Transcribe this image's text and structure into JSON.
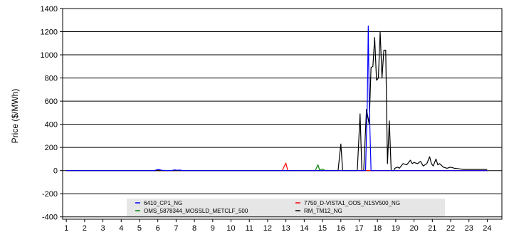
{
  "chart_data": {
    "type": "line",
    "ylabel": "Price ($/MWh)",
    "xlim": [
      0.8,
      24.8
    ],
    "ylim": [
      -420,
      1400
    ],
    "y_ticks": [
      1400,
      1200,
      1000,
      800,
      600,
      400,
      200,
      0,
      -200,
      -400
    ],
    "y_tick_labels": [
      "1400",
      "1200",
      "1000",
      "800",
      "600",
      "400",
      "200",
      "0",
      "-200",
      "-400"
    ],
    "x_ticks": [
      1,
      2,
      3,
      4,
      5,
      6,
      7,
      8,
      9,
      10,
      11,
      12,
      13,
      14,
      15,
      16,
      17,
      18,
      19,
      20,
      21,
      22,
      23,
      24
    ],
    "x_tick_labels": [
      "1",
      "2",
      "3",
      "4",
      "5",
      "6",
      "7",
      "8",
      "9",
      "10",
      "11",
      "12",
      "13",
      "14",
      "15",
      "16",
      "17",
      "18",
      "19",
      "20",
      "21",
      "22",
      "23",
      "24"
    ],
    "grid": "horizontal",
    "legend_position": "bottom-center",
    "series": [
      {
        "name": "6410_CP1_NG",
        "color": "#0000ff",
        "x": [
          1,
          5.8,
          5.9,
          6.0,
          6.1,
          6.2,
          6.6,
          6.8,
          6.9,
          7.0,
          7.1,
          7.2,
          7.3,
          7.5,
          17.35,
          17.45,
          17.5,
          17.55,
          17.65,
          24
        ],
        "y": [
          0,
          0,
          5,
          10,
          8,
          3,
          0,
          2,
          6,
          4,
          3,
          5,
          2,
          0,
          0,
          600,
          1250,
          600,
          0,
          0
        ]
      },
      {
        "name": "7750_D-VISTA1_OOS_N1SV500_NG",
        "color": "#ff0000",
        "x": [
          1,
          12.8,
          12.9,
          13.0,
          13.1,
          24
        ],
        "y": [
          0,
          0,
          35,
          65,
          0,
          0
        ]
      },
      {
        "name": "OMS_5878344_MOSSLD_METCLF_500",
        "color": "#008000",
        "x": [
          1,
          14.6,
          14.75,
          14.85,
          14.95,
          15.05,
          15.15,
          24
        ],
        "y": [
          0,
          0,
          50,
          0,
          12,
          10,
          0,
          0
        ]
      },
      {
        "name": "RM_TM12_NG",
        "color": "#000000",
        "x": [
          1,
          15.85,
          16.0,
          16.1,
          16.2,
          16.9,
          17.05,
          17.15,
          17.25,
          17.4,
          17.55,
          17.65,
          17.75,
          17.85,
          17.95,
          18.05,
          18.15,
          18.25,
          18.35,
          18.45,
          18.55,
          18.65,
          18.75,
          18.85,
          18.9,
          18.95,
          19.1,
          19.2,
          19.4,
          19.6,
          19.8,
          19.9,
          20.0,
          20.2,
          20.35,
          20.5,
          20.7,
          20.85,
          20.95,
          21.05,
          21.2,
          21.3,
          21.4,
          21.6,
          21.8,
          22.0,
          22.2,
          22.5,
          22.7,
          24
        ],
        "y": [
          0,
          0,
          230,
          0,
          0,
          0,
          490,
          0,
          0,
          530,
          400,
          890,
          900,
          1150,
          780,
          800,
          1200,
          800,
          1040,
          1040,
          60,
          430,
          0,
          0,
          0,
          20,
          30,
          20,
          60,
          50,
          90,
          60,
          70,
          60,
          80,
          40,
          60,
          120,
          60,
          40,
          100,
          50,
          60,
          30,
          20,
          30,
          20,
          15,
          10,
          10
        ]
      }
    ]
  }
}
